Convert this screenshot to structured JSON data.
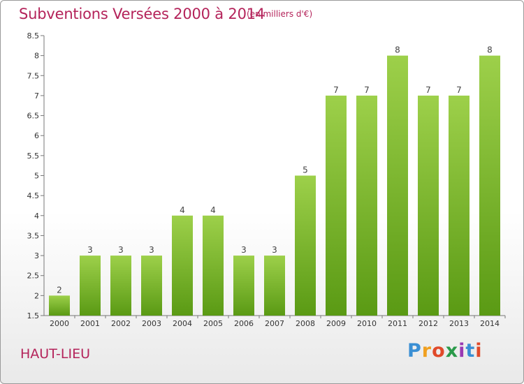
{
  "header": {
    "title": "Subventions Versées 2000 à 2014",
    "subtitle": "(en milliers d'€)"
  },
  "footer": {
    "place": "HAUT-LIEU",
    "logo": "Proxiti"
  },
  "colors": {
    "bar_top": "#9dd04a",
    "bar_bottom": "#5a9a14",
    "title": "#b4235a"
  },
  "chart_data": {
    "type": "bar",
    "categories": [
      "2000",
      "2001",
      "2002",
      "2003",
      "2004",
      "2005",
      "2006",
      "2007",
      "2008",
      "2009",
      "2010",
      "2011",
      "2012",
      "2013",
      "2014"
    ],
    "values": [
      2,
      3,
      3,
      3,
      4,
      4,
      3,
      3,
      5,
      7,
      7,
      8,
      7,
      7,
      8
    ],
    "ylim": [
      1.5,
      8.5
    ],
    "yticks": [
      "1.5",
      "2",
      "2.5",
      "3",
      "3.5",
      "4",
      "4.5",
      "5",
      "5.5",
      "6",
      "6.5",
      "7",
      "7.5",
      "8",
      "8.5"
    ],
    "grid": false,
    "legend": "none"
  }
}
